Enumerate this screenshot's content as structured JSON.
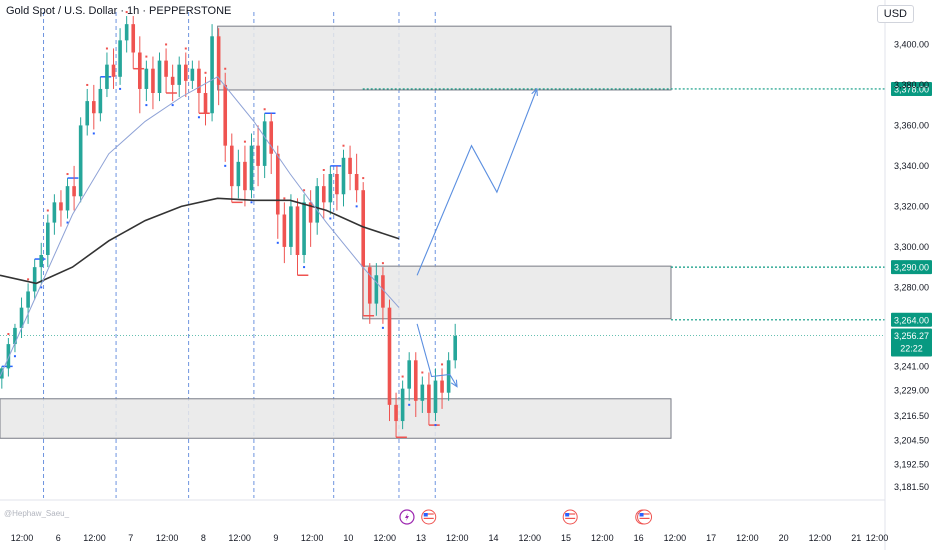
{
  "header": {
    "title": "Gold Spot / U.S. Dollar · 1h · PEPPERSTONE",
    "currency": "USD",
    "watermark": "@Hephaw_Saeu_"
  },
  "colors": {
    "up": "#26a69a",
    "down": "#ef5350",
    "zone_fill": "#e8e8e8",
    "zone_stroke": "#787b86",
    "level": "#089981",
    "ma_dark": "#333333",
    "ma_light": "#8ea2d6",
    "projection": "#5b8fe0",
    "vline": "#4a7ad8",
    "high_mark": "#ef5350",
    "low_mark": "#2962ff",
    "price_tag": "#089981"
  },
  "chart_data": {
    "type": "candlestick",
    "symbol": "Gold Spot / U.S. Dollar",
    "interval": "1h",
    "source": "PEPPERSTONE",
    "x_axis": {
      "ticks": [
        {
          "label": "12:00",
          "pos": 0.0
        },
        {
          "label": "6",
          "pos": 1.0
        },
        {
          "label": "12:00",
          "pos": 2.0
        },
        {
          "label": "7",
          "pos": 3.0
        },
        {
          "label": "12:00",
          "pos": 4.0
        },
        {
          "label": "8",
          "pos": 5.0
        },
        {
          "label": "12:00",
          "pos": 6.0
        },
        {
          "label": "9",
          "pos": 7.0
        },
        {
          "label": "12:00",
          "pos": 8.0
        },
        {
          "label": "10",
          "pos": 9.0
        },
        {
          "label": "12:00",
          "pos": 10.0
        },
        {
          "label": "13",
          "pos": 11.0
        },
        {
          "label": "12:00",
          "pos": 12.0
        },
        {
          "label": "14",
          "pos": 13.0
        },
        {
          "label": "12:00",
          "pos": 14.0
        },
        {
          "label": "15",
          "pos": 15.0
        },
        {
          "label": "12:00",
          "pos": 16.0
        },
        {
          "label": "16",
          "pos": 17.0
        },
        {
          "label": "12:00",
          "pos": 18.0
        },
        {
          "label": "17",
          "pos": 19.0
        },
        {
          "label": "12:00",
          "pos": 20.0
        },
        {
          "label": "20",
          "pos": 21.0
        },
        {
          "label": "12:00",
          "pos": 22.0
        },
        {
          "label": "21",
          "pos": 23.0
        },
        {
          "label": "12:00",
          "pos": 24.0
        }
      ],
      "session_breaks": [
        1.2,
        3.2,
        5.2,
        7.0,
        9.2,
        11.0,
        12.0
      ]
    },
    "y_axis": {
      "ylim": [
        3176,
        3416
      ],
      "ticks": [
        3400.0,
        3380.0,
        3360.0,
        3340.0,
        3320.0,
        3300.0,
        3280.0,
        3264.0,
        3256.27,
        3241.0,
        3229.0,
        3216.5,
        3204.5,
        3192.5,
        3181.5
      ],
      "tick_labels": [
        "3,400.00",
        "3,380.00",
        "3,360.00",
        "3,340.00",
        "3,320.00",
        "3,300.00",
        "3,280.00",
        "3,264.00",
        "3,256.27",
        "3,241.00",
        "3,229.00",
        "3,216.50",
        "3,204.50",
        "3,192.50",
        "3,181.50"
      ]
    },
    "zones": [
      {
        "name": "supply-zone-top",
        "x0": 6.0,
        "x1": 18.5,
        "y0": 3377.5,
        "y1": 3409.0
      },
      {
        "name": "mid-zone",
        "x0": 10.0,
        "x1": 18.5,
        "y0": 3264.5,
        "y1": 3290.5
      },
      {
        "name": "demand-zone",
        "x0": 0.0,
        "x1": 18.5,
        "y0": 3205.5,
        "y1": 3225.0
      }
    ],
    "levels": [
      {
        "value": 3378.0,
        "label": "3,378.00",
        "x_start": 10.0
      },
      {
        "value": 3290.0,
        "label": "3,290.00",
        "x_start": 18.5
      },
      {
        "value": 3264.0,
        "label": "3,264.00",
        "x_start": 18.5
      }
    ],
    "last_price": {
      "value": 3256.27,
      "label": "3,256.27",
      "countdown": "22:22"
    },
    "candles": [
      [
        3235,
        3240,
        3230,
        3241
      ],
      [
        3240,
        3252,
        3236,
        3255
      ],
      [
        3252,
        3260,
        3248,
        3262
      ],
      [
        3260,
        3270,
        3255,
        3275
      ],
      [
        3270,
        3278,
        3262,
        3282
      ],
      [
        3278,
        3290,
        3274,
        3294
      ],
      [
        3290,
        3296,
        3282,
        3302
      ],
      [
        3296,
        3312,
        3290,
        3316
      ],
      [
        3312,
        3322,
        3306,
        3326
      ],
      [
        3322,
        3318,
        3310,
        3328
      ],
      [
        3318,
        3330,
        3314,
        3334
      ],
      [
        3330,
        3325,
        3318,
        3340
      ],
      [
        3325,
        3360,
        3322,
        3364
      ],
      [
        3360,
        3372,
        3355,
        3378
      ],
      [
        3372,
        3366,
        3358,
        3380
      ],
      [
        3366,
        3378,
        3362,
        3384
      ],
      [
        3378,
        3390,
        3374,
        3396
      ],
      [
        3390,
        3384,
        3378,
        3398
      ],
      [
        3384,
        3402,
        3380,
        3408
      ],
      [
        3402,
        3410,
        3396,
        3414
      ],
      [
        3410,
        3396,
        3388,
        3414
      ],
      [
        3396,
        3378,
        3366,
        3404
      ],
      [
        3378,
        3388,
        3372,
        3392
      ],
      [
        3388,
        3376,
        3368,
        3394
      ],
      [
        3376,
        3392,
        3372,
        3396
      ],
      [
        3392,
        3384,
        3376,
        3398
      ],
      [
        3384,
        3380,
        3372,
        3390
      ],
      [
        3380,
        3390,
        3374,
        3394
      ],
      [
        3390,
        3382,
        3374,
        3396
      ],
      [
        3382,
        3388,
        3378,
        3392
      ],
      [
        3388,
        3376,
        3366,
        3392
      ],
      [
        3376,
        3366,
        3360,
        3384
      ],
      [
        3366,
        3404,
        3362,
        3410
      ],
      [
        3404,
        3380,
        3370,
        3408
      ],
      [
        3380,
        3350,
        3342,
        3386
      ],
      [
        3350,
        3330,
        3322,
        3356
      ],
      [
        3330,
        3342,
        3324,
        3348
      ],
      [
        3342,
        3328,
        3320,
        3350
      ],
      [
        3328,
        3350,
        3324,
        3356
      ],
      [
        3350,
        3340,
        3330,
        3360
      ],
      [
        3340,
        3362,
        3334,
        3366
      ],
      [
        3362,
        3346,
        3336,
        3366
      ],
      [
        3346,
        3316,
        3304,
        3350
      ],
      [
        3316,
        3300,
        3292,
        3322
      ],
      [
        3300,
        3320,
        3296,
        3326
      ],
      [
        3320,
        3296,
        3286,
        3324
      ],
      [
        3296,
        3322,
        3292,
        3326
      ],
      [
        3322,
        3312,
        3300,
        3328
      ],
      [
        3312,
        3330,
        3306,
        3334
      ],
      [
        3330,
        3322,
        3314,
        3336
      ],
      [
        3322,
        3336,
        3316,
        3340
      ],
      [
        3336,
        3326,
        3318,
        3340
      ],
      [
        3326,
        3344,
        3320,
        3348
      ],
      [
        3344,
        3336,
        3328,
        3350
      ],
      [
        3336,
        3328,
        3322,
        3346
      ],
      [
        3328,
        3290,
        3266,
        3332
      ],
      [
        3290,
        3272,
        3262,
        3292
      ],
      [
        3272,
        3286,
        3266,
        3292
      ],
      [
        3286,
        3270,
        3262,
        3290
      ],
      [
        3270,
        3222,
        3214,
        3274
      ],
      [
        3222,
        3214,
        3206,
        3228
      ],
      [
        3214,
        3230,
        3210,
        3234
      ],
      [
        3230,
        3244,
        3224,
        3248
      ],
      [
        3244,
        3224,
        3216,
        3248
      ],
      [
        3224,
        3232,
        3218,
        3236
      ],
      [
        3232,
        3218,
        3212,
        3238
      ],
      [
        3218,
        3234,
        3214,
        3240
      ],
      [
        3234,
        3228,
        3220,
        3240
      ],
      [
        3228,
        3244,
        3224,
        3248
      ],
      [
        3244,
        3256,
        3240,
        3262
      ]
    ],
    "moving_averages": [
      {
        "name": "ma-dark",
        "points": [
          [
            0.0,
            3286
          ],
          [
            1.0,
            3282
          ],
          [
            2.0,
            3290
          ],
          [
            3.0,
            3303
          ],
          [
            4.0,
            3313
          ],
          [
            5.0,
            3320
          ],
          [
            6.0,
            3324
          ],
          [
            7.0,
            3323
          ],
          [
            8.0,
            3323
          ],
          [
            9.0,
            3318
          ],
          [
            10.0,
            3310
          ],
          [
            11.0,
            3304
          ]
        ]
      },
      {
        "name": "ma-light",
        "points": [
          [
            0.0,
            3236
          ],
          [
            1.0,
            3276
          ],
          [
            2.0,
            3316
          ],
          [
            3.0,
            3346
          ],
          [
            4.0,
            3362
          ],
          [
            5.0,
            3374
          ],
          [
            6.0,
            3384
          ],
          [
            7.0,
            3362
          ],
          [
            8.0,
            3336
          ],
          [
            9.0,
            3312
          ],
          [
            10.0,
            3290
          ],
          [
            11.0,
            3270
          ]
        ]
      }
    ],
    "projections": [
      {
        "name": "bullish-path",
        "points": [
          [
            11.5,
            3286
          ],
          [
            13.0,
            3350
          ],
          [
            13.7,
            3327
          ],
          [
            14.8,
            3378
          ]
        ]
      },
      {
        "name": "bearish-path",
        "points": [
          [
            11.5,
            3262
          ],
          [
            11.9,
            3236
          ],
          [
            12.4,
            3237
          ],
          [
            12.6,
            3231
          ]
        ]
      }
    ],
    "event_icons": [
      {
        "x": 11.0,
        "type": "lightning"
      },
      {
        "x": 11.6,
        "type": "flag-us"
      },
      {
        "x": 15.5,
        "type": "flag-us"
      },
      {
        "x": 17.5,
        "type": "flag-us"
      },
      {
        "x": 17.55,
        "type": "flag-us"
      }
    ]
  }
}
